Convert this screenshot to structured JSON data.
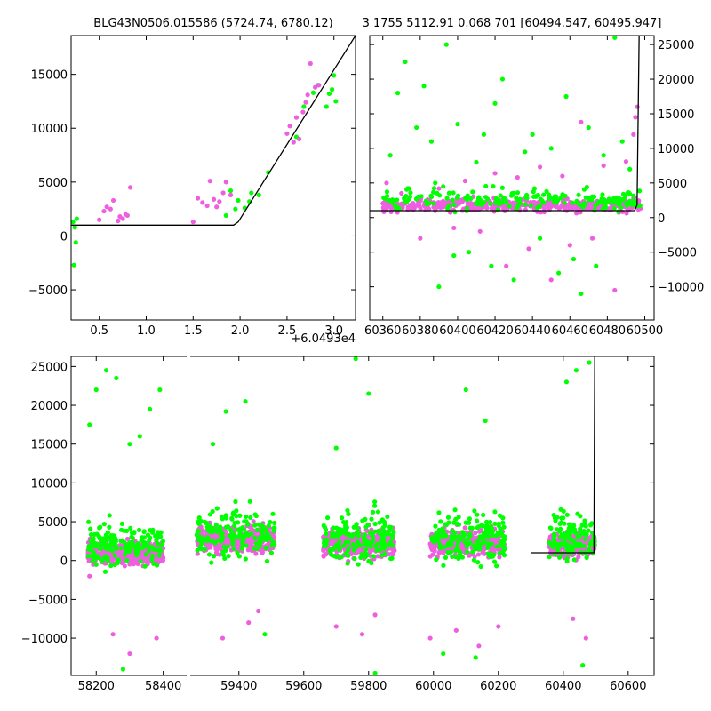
{
  "colors": {
    "series_a": "#00ff00",
    "series_b": "#ee5fe0",
    "model": "#000000",
    "axes": "#000000"
  },
  "chart_data": [
    {
      "type": "scatter",
      "id": "zoom",
      "title": "BLG43N0506.015586 (5724.74, 6780.12)",
      "xlabel": "",
      "ylabel": "",
      "offset_label": "+6.0493e4",
      "xlim": [
        0.2,
        3.23
      ],
      "ylim": [
        -7800,
        18600
      ],
      "xticks": [
        0.5,
        1.0,
        1.5,
        2.0,
        2.5,
        3.0
      ],
      "xtick_labels": [
        "0.5",
        "1.0",
        "1.5",
        "2.0",
        "2.5",
        "3.0"
      ],
      "yticks": [
        -5000,
        0,
        5000,
        10000,
        15000
      ],
      "ytick_labels": [
        "−5000",
        "0",
        "5000",
        "10000",
        "15000"
      ],
      "series": [
        {
          "color": "green",
          "points": [
            [
              0.22,
              1300
            ],
            [
              0.24,
              800
            ],
            [
              0.25,
              -600
            ],
            [
              0.23,
              -2700
            ],
            [
              0.26,
              1600
            ],
            [
              1.85,
              1900
            ],
            [
              1.9,
              4200
            ],
            [
              1.95,
              2500
            ],
            [
              1.98,
              3300
            ],
            [
              2.05,
              2600
            ],
            [
              2.1,
              3200
            ],
            [
              2.12,
              4000
            ],
            [
              2.2,
              3800
            ],
            [
              2.3,
              5900
            ],
            [
              2.6,
              9200
            ],
            [
              2.68,
              12000
            ],
            [
              2.78,
              13300
            ],
            [
              2.83,
              14000
            ],
            [
              2.92,
              12000
            ],
            [
              2.95,
              13200
            ],
            [
              2.98,
              13600
            ],
            [
              3.0,
              14900
            ],
            [
              3.02,
              12500
            ]
          ]
        },
        {
          "color": "magenta",
          "points": [
            [
              0.5,
              1500
            ],
            [
              0.55,
              2300
            ],
            [
              0.58,
              2700
            ],
            [
              0.62,
              2500
            ],
            [
              0.65,
              3300
            ],
            [
              0.7,
              1400
            ],
            [
              0.72,
              1800
            ],
            [
              0.75,
              1600
            ],
            [
              0.78,
              2000
            ],
            [
              0.8,
              1900
            ],
            [
              0.83,
              4500
            ],
            [
              1.5,
              1300
            ],
            [
              1.55,
              3500
            ],
            [
              1.6,
              3100
            ],
            [
              1.65,
              2800
            ],
            [
              1.68,
              5100
            ],
            [
              1.72,
              3400
            ],
            [
              1.75,
              2700
            ],
            [
              1.78,
              3200
            ],
            [
              1.82,
              4000
            ],
            [
              1.85,
              5000
            ],
            [
              1.9,
              3800
            ],
            [
              2.5,
              9500
            ],
            [
              2.53,
              10200
            ],
            [
              2.57,
              8700
            ],
            [
              2.6,
              11000
            ],
            [
              2.63,
              9000
            ],
            [
              2.67,
              11500
            ],
            [
              2.7,
              12400
            ],
            [
              2.72,
              13100
            ],
            [
              2.75,
              16000
            ],
            [
              2.8,
              13800
            ],
            [
              2.84,
              14000
            ]
          ]
        }
      ],
      "model_line": [
        [
          0.2,
          1000
        ],
        [
          1.93,
          1000
        ],
        [
          1.98,
          1300
        ],
        [
          3.23,
          18600
        ]
      ]
    },
    {
      "type": "scatter",
      "id": "season",
      "title": "3 1755 5112.91 0.068 701 [60494.547, 60495.947]",
      "xlabel": "",
      "ylabel": "",
      "xlim": [
        60353,
        60505
      ],
      "ylim": [
        -14800,
        26300
      ],
      "xticks": [
        60360,
        60380,
        60400,
        60420,
        60440,
        60460,
        60480,
        60500
      ],
      "xtick_labels": [
        "60360",
        "60380",
        "60400",
        "60420",
        "60440",
        "60460",
        "60480",
        "60500"
      ],
      "yticks": [
        -10000,
        -5000,
        0,
        5000,
        10000,
        15000,
        20000,
        25000
      ],
      "ytick_labels": [
        "−10000",
        "−5000",
        "0",
        "5000",
        "10000",
        "15000",
        "20000",
        "25000"
      ],
      "series": [
        {
          "color": "green",
          "points": [
            [
              60364,
              9000
            ],
            [
              60368,
              18000
            ],
            [
              60372,
              22500
            ],
            [
              60378,
              13000
            ],
            [
              60382,
              19000
            ],
            [
              60386,
              11000
            ],
            [
              60388,
              5000
            ],
            [
              60390,
              -10000
            ],
            [
              60394,
              25000
            ],
            [
              60398,
              -5500
            ],
            [
              60400,
              13500
            ],
            [
              60406,
              -5000
            ],
            [
              60410,
              8000
            ],
            [
              60414,
              12000
            ],
            [
              60418,
              -7000
            ],
            [
              60420,
              16500
            ],
            [
              60424,
              20000
            ],
            [
              60430,
              -9000
            ],
            [
              60436,
              9500
            ],
            [
              60440,
              12000
            ],
            [
              60444,
              -3000
            ],
            [
              60450,
              10000
            ],
            [
              60454,
              -8000
            ],
            [
              60458,
              17500
            ],
            [
              60462,
              -6000
            ],
            [
              60466,
              -11000
            ],
            [
              60470,
              13000
            ],
            [
              60474,
              -7000
            ],
            [
              60478,
              9000
            ],
            [
              60484,
              26000
            ],
            [
              60488,
              11000
            ],
            [
              60492,
              7000
            ]
          ]
        },
        {
          "color": "magenta",
          "points": [
            [
              60362,
              5000
            ],
            [
              60370,
              3500
            ],
            [
              60380,
              -3000
            ],
            [
              60390,
              4200
            ],
            [
              60398,
              -1500
            ],
            [
              60404,
              5300
            ],
            [
              60412,
              -2000
            ],
            [
              60420,
              6400
            ],
            [
              60426,
              -7000
            ],
            [
              60432,
              5800
            ],
            [
              60438,
              -4500
            ],
            [
              60444,
              7300
            ],
            [
              60450,
              -9000
            ],
            [
              60456,
              6000
            ],
            [
              60460,
              -4000
            ],
            [
              60466,
              13800
            ],
            [
              60472,
              -3000
            ],
            [
              60478,
              7500
            ],
            [
              60484,
              -10500
            ],
            [
              60490,
              8100
            ],
            [
              60494,
              12000
            ],
            [
              60495,
              14500
            ],
            [
              60496,
              16000
            ]
          ]
        }
      ],
      "dense_bands": [
        {
          "x_from": 60360,
          "x_to": 60498,
          "y_center": 1800,
          "y_spread": 1600,
          "count": 420,
          "color": "magenta"
        },
        {
          "x_from": 60360,
          "x_to": 60498,
          "y_center": 2500,
          "y_spread": 2800,
          "count": 200,
          "color": "green"
        }
      ],
      "model_line": [
        [
          60353,
          1000
        ],
        [
          60494.5,
          1000
        ],
        [
          60495.9,
          1800
        ],
        [
          60497,
          26300
        ]
      ]
    },
    {
      "type": "scatter",
      "id": "full",
      "title": "",
      "xlabel": "",
      "ylabel": "",
      "xlim": [
        58125,
        60680
      ],
      "ylim": [
        -14800,
        26300
      ],
      "xtick_labels": [
        "58200",
        "58400",
        "59400",
        "59600",
        "59800",
        "60000",
        "60200",
        "60400",
        "60600"
      ],
      "yticks": [
        -10000,
        -5000,
        0,
        5000,
        10000,
        15000,
        20000,
        25000
      ],
      "ytick_labels": [
        "−10000",
        "−5000",
        "0",
        "5000",
        "10000",
        "15000",
        "20000",
        "25000"
      ],
      "series": [
        {
          "color": "green",
          "points": [
            [
              58180,
              17500
            ],
            [
              58200,
              22000
            ],
            [
              58230,
              24500
            ],
            [
              58260,
              23500
            ],
            [
              58280,
              -14000
            ],
            [
              58300,
              15000
            ],
            [
              58330,
              16000
            ],
            [
              58360,
              19500
            ],
            [
              58390,
              22000
            ],
            [
              59320,
              15000
            ],
            [
              59360,
              19200
            ],
            [
              59420,
              20500
            ],
            [
              59480,
              -9500
            ],
            [
              59700,
              14500
            ],
            [
              59760,
              26000
            ],
            [
              59800,
              21500
            ],
            [
              59820,
              -14500
            ],
            [
              60030,
              -12000
            ],
            [
              60100,
              22000
            ],
            [
              60130,
              -12500
            ],
            [
              60160,
              18000
            ],
            [
              60410,
              23000
            ],
            [
              60440,
              24500
            ],
            [
              60480,
              25500
            ],
            [
              60460,
              -13500
            ]
          ]
        },
        {
          "color": "magenta",
          "points": [
            [
              58180,
              -2000
            ],
            [
              58250,
              -9500
            ],
            [
              58300,
              -12000
            ],
            [
              58380,
              -10000
            ],
            [
              59350,
              -10000
            ],
            [
              59430,
              -8000
            ],
            [
              59460,
              -6500
            ],
            [
              59700,
              -8500
            ],
            [
              59780,
              -9500
            ],
            [
              59820,
              -7000
            ],
            [
              59990,
              -10000
            ],
            [
              60070,
              -9000
            ],
            [
              60140,
              -11000
            ],
            [
              60200,
              -8500
            ],
            [
              60430,
              -7500
            ],
            [
              60470,
              -10000
            ]
          ]
        }
      ],
      "dense_bands": [
        {
          "x_from": 58175,
          "x_to": 58400,
          "y_center": 1000,
          "y_spread": 2500,
          "count": 380,
          "color": "magenta"
        },
        {
          "x_from": 58175,
          "x_to": 58400,
          "y_center": 2000,
          "y_spread": 4500,
          "count": 170,
          "color": "green"
        },
        {
          "x_from": 59270,
          "x_to": 59510,
          "y_center": 2800,
          "y_spread": 2800,
          "count": 380,
          "color": "magenta"
        },
        {
          "x_from": 59270,
          "x_to": 59510,
          "y_center": 3500,
          "y_spread": 5000,
          "count": 170,
          "color": "green"
        },
        {
          "x_from": 59660,
          "x_to": 59880,
          "y_center": 2200,
          "y_spread": 3000,
          "count": 380,
          "color": "magenta"
        },
        {
          "x_from": 59660,
          "x_to": 59880,
          "y_center": 3000,
          "y_spread": 5500,
          "count": 170,
          "color": "green"
        },
        {
          "x_from": 59990,
          "x_to": 60220,
          "y_center": 2200,
          "y_spread": 2800,
          "count": 380,
          "color": "magenta"
        },
        {
          "x_from": 59990,
          "x_to": 60220,
          "y_center": 3000,
          "y_spread": 5500,
          "count": 170,
          "color": "green"
        },
        {
          "x_from": 60355,
          "x_to": 60497,
          "y_center": 2000,
          "y_spread": 2500,
          "count": 260,
          "color": "magenta"
        },
        {
          "x_from": 60355,
          "x_to": 60497,
          "y_center": 3000,
          "y_spread": 5000,
          "count": 120,
          "color": "green"
        }
      ],
      "model_line": [
        [
          60300,
          1000
        ],
        [
          60494.5,
          1000
        ],
        [
          60497,
          26300
        ]
      ]
    }
  ]
}
